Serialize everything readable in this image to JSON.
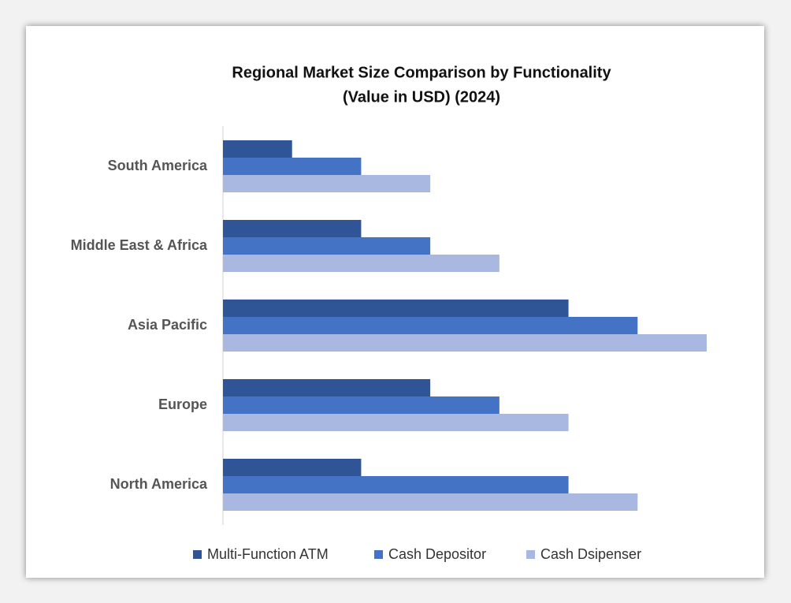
{
  "chart_data": {
    "type": "hbar",
    "title": "Regional Market Size Comparison by Functionality",
    "subtitle": "(Value in USD) (2024)",
    "categories": [
      "South America",
      "Middle East & Africa",
      "Asia Pacific",
      "Europe",
      "North America"
    ],
    "series": [
      {
        "name": "Multi-Function ATM",
        "color": "#2f5597",
        "values": [
          1,
          2,
          5,
          3,
          2
        ]
      },
      {
        "name": "Cash Depositor",
        "color": "#4472c4",
        "values": [
          2,
          3,
          6,
          4,
          5
        ]
      },
      {
        "name": "Cash Dsipenser",
        "color": "#a9b8e0",
        "values": [
          3,
          4,
          7,
          5,
          6
        ]
      }
    ],
    "legend": "bottom"
  }
}
